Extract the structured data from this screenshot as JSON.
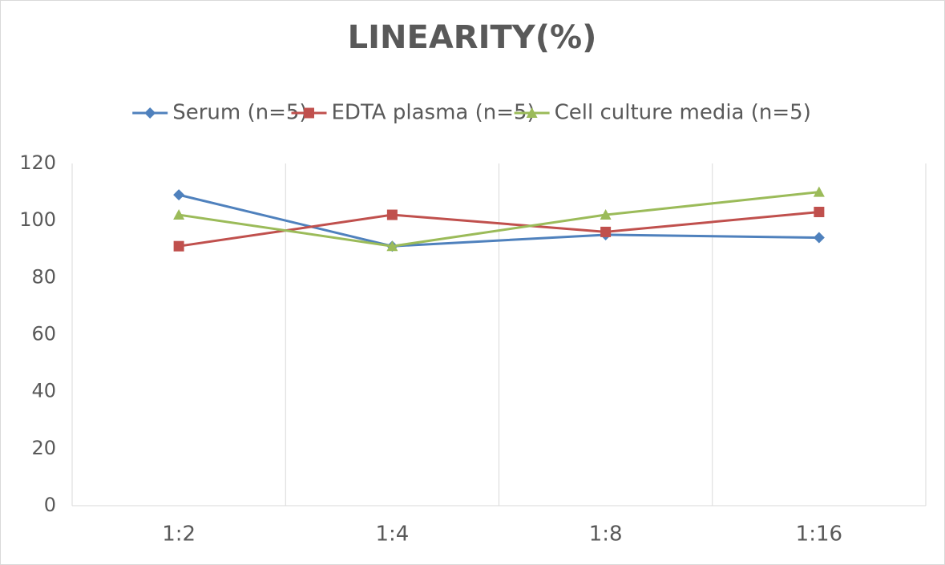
{
  "chart_data": {
    "type": "line",
    "title": "LINEARITY(%)",
    "categories": [
      "1:2",
      "1:4",
      "1:8",
      "1:16"
    ],
    "series": [
      {
        "name": "Serum (n=5)",
        "color": "#4f81bd",
        "marker": "diamond",
        "values": [
          109,
          91,
          95,
          94
        ]
      },
      {
        "name": "EDTA plasma (n=5)",
        "color": "#c0504d",
        "marker": "square",
        "values": [
          91,
          102,
          96,
          103
        ]
      },
      {
        "name": "Cell culture media (n=5)",
        "color": "#9bbb59",
        "marker": "triangle",
        "values": [
          102,
          91,
          102,
          110
        ]
      }
    ],
    "ylim": [
      0,
      120
    ],
    "yticks": [
      0,
      20,
      40,
      60,
      80,
      100,
      120
    ],
    "legend": "top"
  }
}
